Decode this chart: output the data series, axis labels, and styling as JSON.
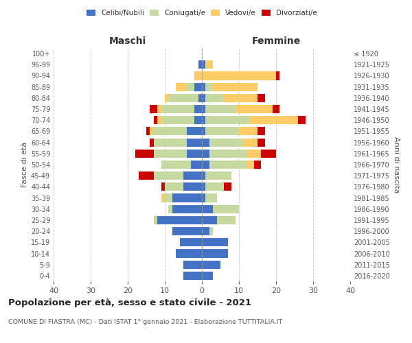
{
  "age_groups": [
    "0-4",
    "5-9",
    "10-14",
    "15-19",
    "20-24",
    "25-29",
    "30-34",
    "35-39",
    "40-44",
    "45-49",
    "50-54",
    "55-59",
    "60-64",
    "65-69",
    "70-74",
    "75-79",
    "80-84",
    "85-89",
    "90-94",
    "95-99",
    "100+"
  ],
  "birth_years": [
    "2016-2020",
    "2011-2015",
    "2006-2010",
    "2001-2005",
    "1996-2000",
    "1991-1995",
    "1986-1990",
    "1981-1985",
    "1976-1980",
    "1971-1975",
    "1966-1970",
    "1961-1965",
    "1956-1960",
    "1951-1955",
    "1946-1950",
    "1941-1945",
    "1936-1940",
    "1931-1935",
    "1926-1930",
    "1921-1925",
    "≤ 1920"
  ],
  "maschi": {
    "celibi": [
      5,
      5,
      7,
      6,
      8,
      12,
      8,
      8,
      5,
      5,
      3,
      4,
      4,
      4,
      2,
      2,
      1,
      2,
      0,
      1,
      0
    ],
    "coniugati": [
      0,
      0,
      0,
      0,
      0,
      1,
      1,
      2,
      5,
      8,
      8,
      9,
      9,
      9,
      9,
      9,
      8,
      2,
      0,
      0,
      0
    ],
    "vedovi": [
      0,
      0,
      0,
      0,
      0,
      0,
      0,
      1,
      0,
      0,
      0,
      0,
      0,
      1,
      1,
      1,
      1,
      3,
      2,
      0,
      0
    ],
    "divorziati": [
      0,
      0,
      0,
      0,
      0,
      0,
      0,
      0,
      1,
      4,
      0,
      5,
      1,
      1,
      1,
      2,
      0,
      0,
      0,
      0,
      0
    ]
  },
  "femmine": {
    "nubili": [
      3,
      5,
      7,
      7,
      2,
      4,
      3,
      1,
      1,
      1,
      2,
      2,
      2,
      1,
      1,
      1,
      1,
      1,
      0,
      1,
      0
    ],
    "coniugate": [
      0,
      0,
      0,
      0,
      1,
      5,
      7,
      3,
      5,
      7,
      10,
      10,
      9,
      9,
      12,
      8,
      5,
      2,
      0,
      0,
      0
    ],
    "vedove": [
      0,
      0,
      0,
      0,
      0,
      0,
      0,
      0,
      0,
      0,
      2,
      4,
      4,
      5,
      13,
      10,
      9,
      12,
      20,
      2,
      0
    ],
    "divorziate": [
      0,
      0,
      0,
      0,
      0,
      0,
      0,
      0,
      2,
      0,
      2,
      4,
      2,
      2,
      2,
      2,
      2,
      0,
      1,
      0,
      0
    ]
  },
  "colors": {
    "celibi_nubili": "#4472C4",
    "coniugati": "#C5D9A0",
    "vedovi": "#FFCC66",
    "divorziati": "#CC0000"
  },
  "xlim": 40,
  "title": "Popolazione per età, sesso e stato civile - 2021",
  "subtitle": "COMUNE DI FIASTRA (MC) - Dati ISTAT 1° gennaio 2021 - Elaborazione TUTTITALIA.IT",
  "ylabel_left": "Fasce di età",
  "ylabel_right": "Anni di nascita",
  "xlabel_maschi": "Maschi",
  "xlabel_femmine": "Femmine",
  "legend_labels": [
    "Celibi/Nubili",
    "Coniugati/e",
    "Vedovi/e",
    "Divorziati/e"
  ],
  "background_color": "#ffffff",
  "grid_color": "#cccccc"
}
